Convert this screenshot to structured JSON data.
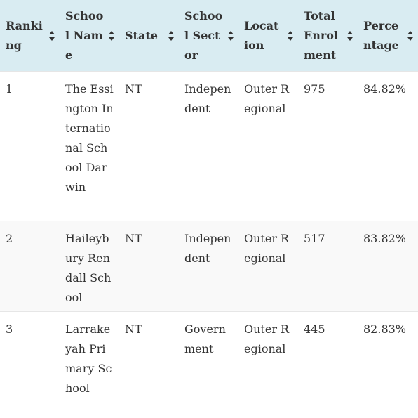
{
  "table": {
    "columns": [
      {
        "label": "Ranking",
        "sort_icon": "sort-icon"
      },
      {
        "label": "School Name",
        "sort_icon": "sort-icon"
      },
      {
        "label": "State",
        "sort_icon": "sort-icon"
      },
      {
        "label": "School Sector",
        "sort_icon": "sort-icon"
      },
      {
        "label": "Location",
        "sort_icon": "sort-icon"
      },
      {
        "label": "Total Enrolment",
        "sort_icon": "sort-icon"
      },
      {
        "label": "Percentage",
        "sort_icon": "sort-icon"
      }
    ],
    "rows": [
      {
        "cells": [
          "1",
          "The Essington International School Darwin",
          "NT",
          "Independent",
          "Outer Regional",
          "975",
          "84.82%"
        ]
      },
      {
        "cells": [
          "2",
          "Haileybury Rendall School",
          "NT",
          "Independent",
          "Outer Regional",
          "517",
          "83.82%"
        ]
      },
      {
        "cells": [
          "3",
          "Larrakeyah Primary School",
          "NT",
          "Government",
          "Outer Regional",
          "445",
          "82.83%"
        ]
      }
    ]
  },
  "colors": {
    "header_background": "#d9ecf2",
    "striped_row_background": "#f9f9f9",
    "text": "#333333",
    "divider": "#e6e6e6"
  }
}
